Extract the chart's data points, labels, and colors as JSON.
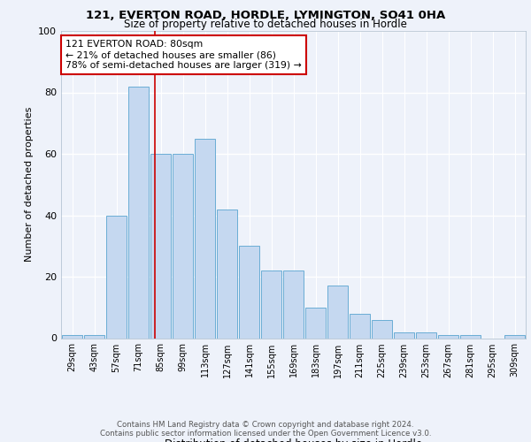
{
  "title1": "121, EVERTON ROAD, HORDLE, LYMINGTON, SO41 0HA",
  "title2": "Size of property relative to detached houses in Hordle",
  "xlabel": "Distribution of detached houses by size in Hordle",
  "ylabel": "Number of detached properties",
  "footnote1": "Contains HM Land Registry data © Crown copyright and database right 2024.",
  "footnote2": "Contains public sector information licensed under the Open Government Licence v3.0.",
  "annotation_line1": "121 EVERTON ROAD: 80sqm",
  "annotation_line2": "← 21% of detached houses are smaller (86)",
  "annotation_line3": "78% of semi-detached houses are larger (319) →",
  "bar_labels": [
    "29sqm",
    "43sqm",
    "57sqm",
    "71sqm",
    "85sqm",
    "99sqm",
    "113sqm",
    "127sqm",
    "141sqm",
    "155sqm",
    "169sqm",
    "183sqm",
    "197sqm",
    "211sqm",
    "225sqm",
    "239sqm",
    "253sqm",
    "267sqm",
    "281sqm",
    "295sqm",
    "309sqm"
  ],
  "bar_values": [
    1,
    1,
    40,
    82,
    60,
    60,
    65,
    42,
    30,
    22,
    22,
    10,
    17,
    8,
    6,
    2,
    2,
    1,
    1,
    0,
    1
  ],
  "bar_color": "#c5d8f0",
  "bar_edge_color": "#6aadd5",
  "vline_x_index": 3.72,
  "vline_color": "#cc0000",
  "ylim": [
    0,
    100
  ],
  "background_color": "#eef2fa",
  "grid_color": "#ffffff",
  "annotation_box_color": "#ffffff",
  "annotation_box_edge": "#cc0000"
}
